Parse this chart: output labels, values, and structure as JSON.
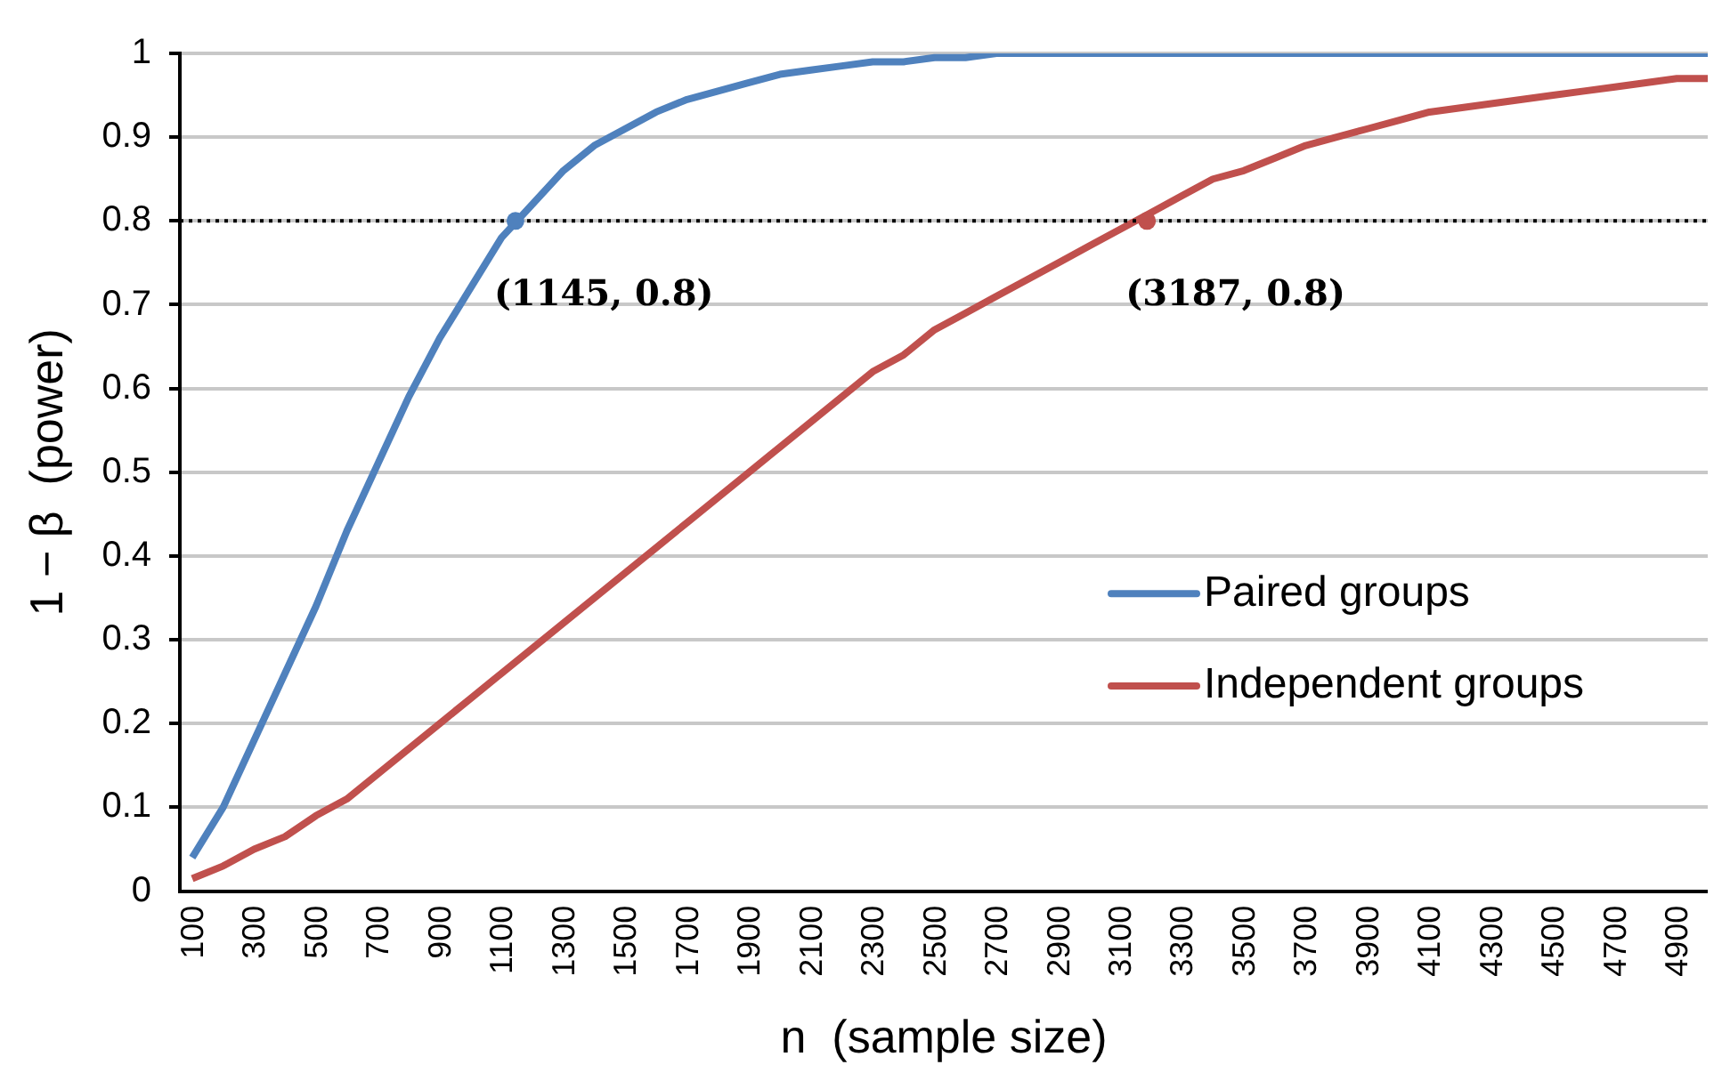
{
  "chart_data": {
    "type": "line",
    "xlabel": "n  (sample size)",
    "ylabel": "1 − β  (power)",
    "x": [
      100,
      200,
      300,
      400,
      500,
      600,
      700,
      800,
      900,
      1000,
      1100,
      1200,
      1300,
      1400,
      1500,
      1600,
      1700,
      1800,
      1900,
      2000,
      2100,
      2200,
      2300,
      2400,
      2500,
      2600,
      2700,
      2800,
      2900,
      3000,
      3100,
      3200,
      3300,
      3400,
      3500,
      3600,
      3700,
      3800,
      3900,
      4000,
      4100,
      4200,
      4300,
      4400,
      4500,
      4600,
      4700,
      4800,
      4900,
      5000
    ],
    "series": [
      {
        "name": "Paired groups",
        "color": "#4f81bd",
        "values": [
          0.04,
          0.1,
          0.18,
          0.26,
          0.34,
          0.43,
          0.51,
          0.59,
          0.66,
          0.72,
          0.78,
          0.82,
          0.86,
          0.89,
          0.91,
          0.93,
          0.945,
          0.955,
          0.965,
          0.975,
          0.98,
          0.985,
          0.99,
          0.99,
          0.995,
          0.995,
          1,
          1,
          1,
          1,
          1,
          1,
          1,
          1,
          1,
          1,
          1,
          1,
          1,
          1,
          1,
          1,
          1,
          1,
          1,
          1,
          1,
          1,
          1,
          1
        ]
      },
      {
        "name": "Independent groups",
        "color": "#c0504d",
        "values": [
          0.015,
          0.03,
          0.05,
          0.065,
          0.09,
          0.11,
          0.14,
          0.17,
          0.2,
          0.23,
          0.26,
          0.29,
          0.32,
          0.35,
          0.38,
          0.41,
          0.44,
          0.47,
          0.5,
          0.53,
          0.56,
          0.59,
          0.62,
          0.64,
          0.67,
          0.69,
          0.71,
          0.73,
          0.75,
          0.77,
          0.79,
          0.81,
          0.83,
          0.85,
          0.86,
          0.875,
          0.89,
          0.9,
          0.91,
          0.92,
          0.93,
          0.935,
          0.94,
          0.945,
          0.95,
          0.955,
          0.96,
          0.965,
          0.97,
          0.97
        ]
      }
    ],
    "xlim": [
      60,
      5000
    ],
    "xticks": [
      100,
      300,
      500,
      700,
      900,
      1100,
      1300,
      1500,
      1700,
      1900,
      2100,
      2300,
      2500,
      2700,
      2900,
      3100,
      3300,
      3500,
      3700,
      3900,
      4100,
      4300,
      4500,
      4700,
      4900
    ],
    "ylim": [
      0,
      1
    ],
    "yticks": [
      0,
      0.1,
      0.2,
      0.3,
      0.4,
      0.5,
      0.6,
      0.7,
      0.8,
      0.9,
      1
    ],
    "ref_lines": [
      {
        "axis": "y",
        "value": 0.8,
        "color": "#000000",
        "line_style": "dotted"
      }
    ],
    "annotations": [
      {
        "text": "(1145, 0.8)",
        "x": 1145,
        "y": 0.8
      },
      {
        "text": "(3187, 0.8)",
        "x": 3187,
        "y": 0.8
      }
    ],
    "grid": "y",
    "legend": "right",
    "marker": "none",
    "line_style": "solid"
  }
}
